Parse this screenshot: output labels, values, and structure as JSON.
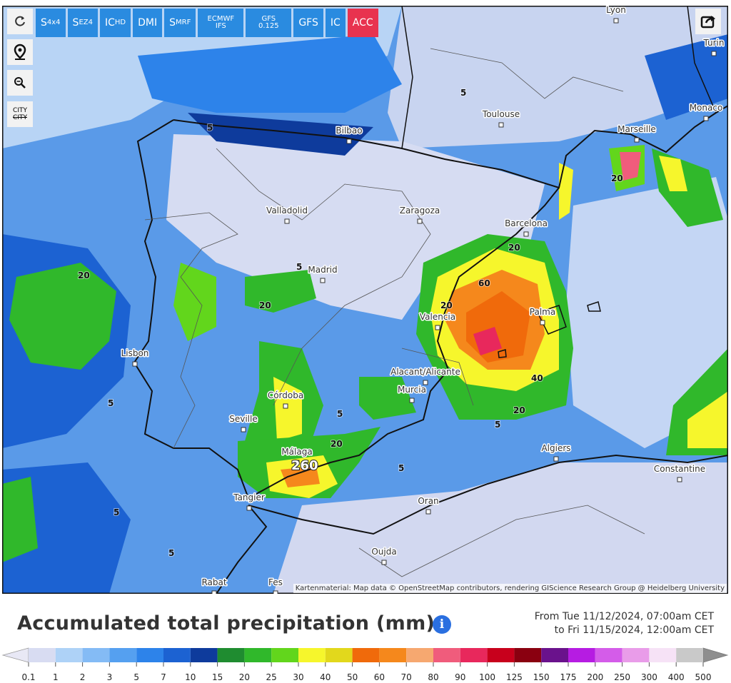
{
  "toolbar": {
    "buttons": [
      {
        "main": "S",
        "sub": "4x4"
      },
      {
        "main": "S",
        "sub": "EZ4"
      },
      {
        "main": "IC",
        "sub": "HD"
      },
      {
        "main": "DMI"
      },
      {
        "main": "S",
        "sub": "MRF"
      },
      {
        "main": "ECMWF IFS"
      },
      {
        "main": "GFS 0.125"
      },
      {
        "main": "GFS"
      },
      {
        "main": "IC"
      },
      {
        "main": "ACC"
      }
    ],
    "city_toggle": "CITY",
    "city_toggle_off": "CITY"
  },
  "map": {
    "cities": [
      "Lyon",
      "Turin",
      "Monaco",
      "Toulouse",
      "Bilbao",
      "Marseille",
      "Valladolid",
      "Zaragoza",
      "Barcelona",
      "Madrid",
      "Palma",
      "Valencia",
      "Lisbon",
      "Alacant/Alicante",
      "Murcia",
      "Córdoba",
      "Seville",
      "Málaga",
      "Algiers",
      "Constantine",
      "Tangier",
      "Oran",
      "Oujda",
      "Rabat",
      "Fes"
    ],
    "contours": [
      "5",
      "20",
      "5",
      "20",
      "60",
      "20",
      "20",
      "40",
      "20",
      "5",
      "5",
      "5",
      "5",
      "5",
      "5",
      "20",
      "260",
      "20",
      "5"
    ],
    "attribution": "Kartenmaterial: Map data © OpenStreetMap contributors, rendering GIScience Research Group @ Heidelberg University"
  },
  "legend": {
    "title": "Accumulated total precipitation (mm)",
    "info": "i",
    "period_from": "From Tue 11/12/2024, 07:00am CET",
    "period_to": "to Fri 11/15/2024, 12:00am CET",
    "labels": [
      "0.1",
      "1",
      "2",
      "3",
      "5",
      "7",
      "10",
      "15",
      "20",
      "25",
      "30",
      "40",
      "50",
      "60",
      "70",
      "80",
      "90",
      "100",
      "125",
      "150",
      "175",
      "200",
      "250",
      "300",
      "400",
      "500"
    ],
    "colors": [
      "#d8dcf2",
      "#aed2f7",
      "#84bbf5",
      "#55a0f0",
      "#2d83ea",
      "#1c62d2",
      "#0e3b9c",
      "#1f8c30",
      "#30b82b",
      "#62d61c",
      "#f6f62c",
      "#e2d81c",
      "#f06a0b",
      "#f5881c",
      "#f6a870",
      "#f05c7c",
      "#e8285c",
      "#c8001c",
      "#8a0010",
      "#6a128c",
      "#b61ce2",
      "#d45ce9",
      "#e99ce9",
      "#f6e2f6",
      "#c9c9c9"
    ],
    "low_color": "#e8e8f5",
    "high_color": "#8e8e8e"
  }
}
